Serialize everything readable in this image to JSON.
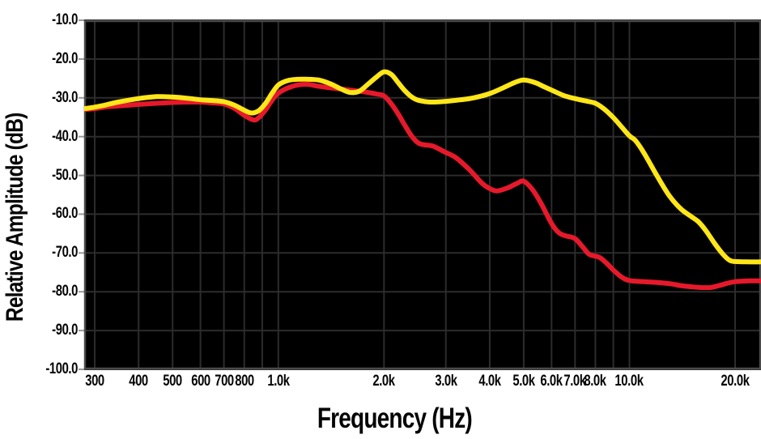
{
  "figure": {
    "background": "#ffffff",
    "plot_background": "#000000",
    "grid_color": "#2c2c2c",
    "border_color": "#4a4a4a",
    "tick_mark_color": "#999999",
    "label_color": "#050505"
  },
  "chart_data": {
    "type": "line",
    "title": "",
    "xlabel": "Frequency (Hz)",
    "ylabel": "Relative Amplitude (dB)",
    "x_scale": "log",
    "grid": true,
    "legend": "none",
    "x_range_hz": [
      280,
      23700
    ],
    "y_range_db": [
      -100,
      -10
    ],
    "x_gridlines_hz": [
      300,
      400,
      500,
      600,
      700,
      800,
      900,
      1000,
      2000,
      3000,
      4000,
      5000,
      6000,
      7000,
      8000,
      9000,
      10000,
      20000
    ],
    "x_ticks": [
      {
        "hz": 300,
        "label": "300"
      },
      {
        "hz": 400,
        "label": "400"
      },
      {
        "hz": 500,
        "label": "500"
      },
      {
        "hz": 600,
        "label": "600"
      },
      {
        "hz": 700,
        "label": "700"
      },
      {
        "hz": 800,
        "label": "800"
      },
      {
        "hz": 1000,
        "label": "1.0k"
      },
      {
        "hz": 2000,
        "label": "2.0k"
      },
      {
        "hz": 3000,
        "label": "3.0k"
      },
      {
        "hz": 4000,
        "label": "4.0k"
      },
      {
        "hz": 5000,
        "label": "5.0k"
      },
      {
        "hz": 6000,
        "label": "6.0k"
      },
      {
        "hz": 7000,
        "label": "7.0k"
      },
      {
        "hz": 8000,
        "label": "8.0k"
      },
      {
        "hz": 10000,
        "label": "10.0k"
      },
      {
        "hz": 20000,
        "label": "20.0k"
      }
    ],
    "y_ticks": [
      {
        "db": -10,
        "label": "-10.0"
      },
      {
        "db": -20,
        "label": "-20.0"
      },
      {
        "db": -30,
        "label": "-30.0"
      },
      {
        "db": -40,
        "label": "-40.0"
      },
      {
        "db": -50,
        "label": "-50.0"
      },
      {
        "db": -60,
        "label": "-60.0"
      },
      {
        "db": -70,
        "label": "-70.0"
      },
      {
        "db": -80,
        "label": "-80.0"
      },
      {
        "db": -90,
        "label": "-90.0"
      },
      {
        "db": -100,
        "label": "-100.0"
      }
    ],
    "series": [
      {
        "name": "red-curve",
        "color": "#e6192b",
        "stroke_width": 6,
        "points": [
          [
            280,
            -33.0
          ],
          [
            300,
            -32.8
          ],
          [
            320,
            -32.4
          ],
          [
            350,
            -32.1
          ],
          [
            400,
            -31.7
          ],
          [
            450,
            -31.4
          ],
          [
            500,
            -31.2
          ],
          [
            550,
            -31.1
          ],
          [
            600,
            -31.1
          ],
          [
            650,
            -31.3
          ],
          [
            700,
            -31.6
          ],
          [
            750,
            -32.7
          ],
          [
            800,
            -34.5
          ],
          [
            850,
            -35.7
          ],
          [
            880,
            -35.1
          ],
          [
            920,
            -33.1
          ],
          [
            950,
            -31.2
          ],
          [
            1000,
            -28.8
          ],
          [
            1100,
            -27.0
          ],
          [
            1200,
            -26.5
          ],
          [
            1300,
            -27.0
          ],
          [
            1400,
            -27.4
          ],
          [
            1500,
            -27.7
          ],
          [
            1600,
            -28.0
          ],
          [
            1700,
            -28.3
          ],
          [
            1800,
            -28.6
          ],
          [
            1900,
            -29.0
          ],
          [
            2000,
            -29.5
          ],
          [
            2100,
            -31.6
          ],
          [
            2200,
            -34.3
          ],
          [
            2300,
            -37.3
          ],
          [
            2400,
            -39.9
          ],
          [
            2500,
            -41.6
          ],
          [
            2600,
            -42.1
          ],
          [
            2750,
            -42.4
          ],
          [
            2900,
            -43.4
          ],
          [
            3000,
            -44.1
          ],
          [
            3200,
            -45.4
          ],
          [
            3500,
            -48.5
          ],
          [
            3800,
            -52.0
          ],
          [
            4000,
            -53.4
          ],
          [
            4200,
            -54.0
          ],
          [
            4500,
            -53.2
          ],
          [
            4800,
            -52.0
          ],
          [
            5000,
            -51.5
          ],
          [
            5300,
            -53.7
          ],
          [
            5600,
            -57.2
          ],
          [
            6000,
            -62.4
          ],
          [
            6300,
            -64.8
          ],
          [
            6600,
            -65.6
          ],
          [
            7000,
            -66.3
          ],
          [
            7400,
            -68.7
          ],
          [
            7700,
            -70.4
          ],
          [
            8200,
            -71.1
          ],
          [
            8600,
            -72.6
          ],
          [
            9000,
            -74.4
          ],
          [
            9500,
            -76.2
          ],
          [
            10000,
            -77.1
          ],
          [
            11000,
            -77.4
          ],
          [
            12000,
            -77.6
          ],
          [
            13000,
            -77.9
          ],
          [
            14000,
            -78.4
          ],
          [
            15000,
            -78.7
          ],
          [
            16000,
            -78.9
          ],
          [
            17000,
            -78.9
          ],
          [
            18000,
            -78.4
          ],
          [
            19000,
            -77.8
          ],
          [
            20000,
            -77.4
          ],
          [
            22000,
            -77.2
          ],
          [
            23700,
            -77.2
          ]
        ]
      },
      {
        "name": "yellow-curve",
        "color": "#ffe619",
        "stroke_width": 6,
        "points": [
          [
            280,
            -32.8
          ],
          [
            300,
            -32.4
          ],
          [
            320,
            -31.9
          ],
          [
            350,
            -31.1
          ],
          [
            400,
            -30.2
          ],
          [
            450,
            -29.7
          ],
          [
            500,
            -29.8
          ],
          [
            550,
            -30.1
          ],
          [
            600,
            -30.5
          ],
          [
            650,
            -30.7
          ],
          [
            700,
            -31.0
          ],
          [
            750,
            -31.9
          ],
          [
            800,
            -33.2
          ],
          [
            840,
            -33.9
          ],
          [
            880,
            -33.3
          ],
          [
            920,
            -31.4
          ],
          [
            960,
            -28.8
          ],
          [
            1000,
            -26.7
          ],
          [
            1050,
            -25.7
          ],
          [
            1100,
            -25.3
          ],
          [
            1200,
            -25.2
          ],
          [
            1300,
            -25.4
          ],
          [
            1400,
            -26.3
          ],
          [
            1500,
            -27.6
          ],
          [
            1600,
            -28.6
          ],
          [
            1700,
            -28.3
          ],
          [
            1800,
            -26.5
          ],
          [
            1900,
            -24.7
          ],
          [
            2000,
            -23.3
          ],
          [
            2100,
            -24.0
          ],
          [
            2200,
            -26.2
          ],
          [
            2300,
            -28.3
          ],
          [
            2400,
            -29.8
          ],
          [
            2500,
            -30.6
          ],
          [
            2700,
            -31.1
          ],
          [
            3000,
            -30.9
          ],
          [
            3300,
            -30.5
          ],
          [
            3600,
            -30.0
          ],
          [
            4000,
            -28.9
          ],
          [
            4400,
            -27.3
          ],
          [
            4700,
            -26.1
          ],
          [
            5000,
            -25.4
          ],
          [
            5400,
            -26.1
          ],
          [
            5700,
            -27.1
          ],
          [
            6000,
            -28.0
          ],
          [
            6500,
            -29.4
          ],
          [
            7000,
            -30.2
          ],
          [
            7500,
            -30.8
          ],
          [
            8000,
            -31.4
          ],
          [
            8500,
            -33.0
          ],
          [
            9000,
            -35.1
          ],
          [
            9500,
            -37.5
          ],
          [
            10000,
            -39.8
          ],
          [
            10400,
            -41.0
          ],
          [
            11000,
            -44.2
          ],
          [
            12000,
            -50.2
          ],
          [
            13000,
            -55.3
          ],
          [
            14000,
            -58.6
          ],
          [
            15000,
            -60.6
          ],
          [
            15700,
            -61.9
          ],
          [
            16500,
            -64.2
          ],
          [
            17500,
            -67.6
          ],
          [
            18500,
            -70.4
          ],
          [
            19300,
            -71.9
          ],
          [
            20000,
            -72.2
          ],
          [
            21500,
            -72.3
          ],
          [
            23700,
            -72.3
          ]
        ]
      }
    ]
  }
}
